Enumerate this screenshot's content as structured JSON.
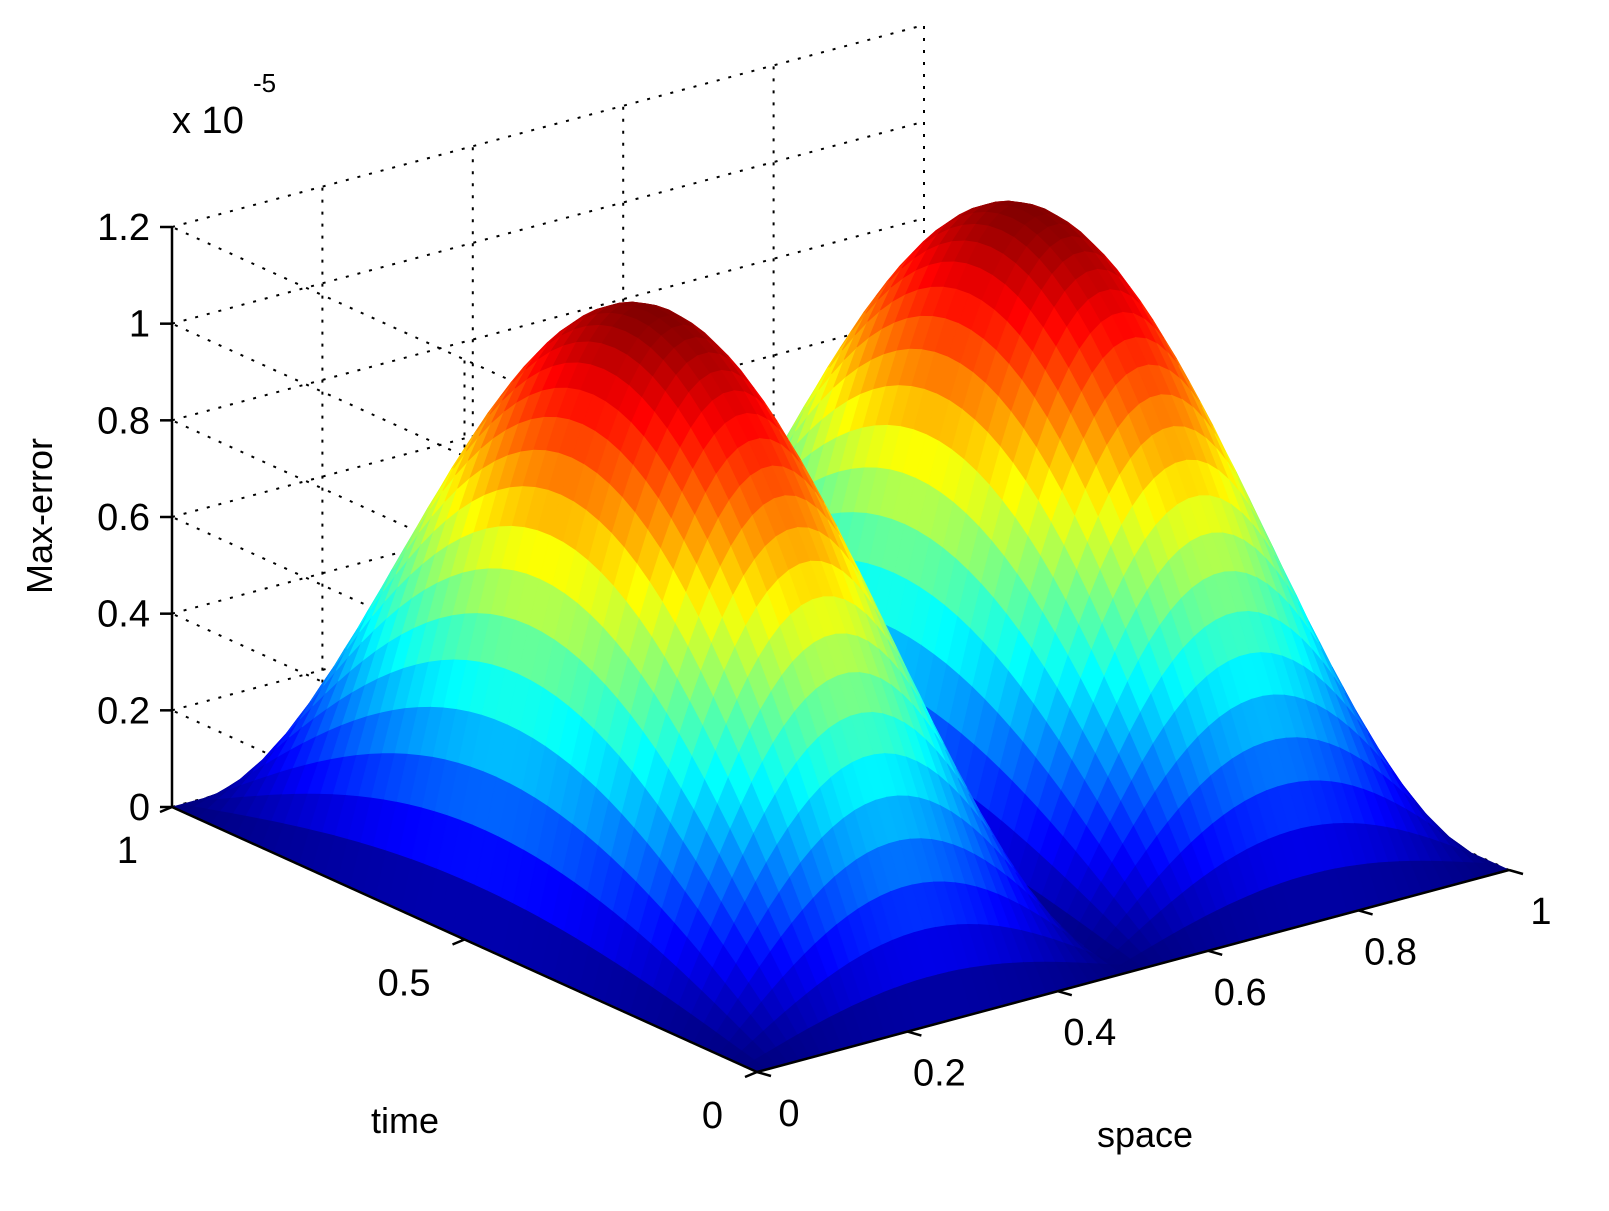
{
  "chart_data": {
    "type": "surface",
    "title": "",
    "xlabel": "space",
    "ylabel": "time",
    "zlabel": "Max-error",
    "z_multiplier_label": {
      "base": "x 10",
      "exponent": "-5"
    },
    "x_ticks": [
      "0",
      "0.2",
      "0.4",
      "0.6",
      "0.8",
      "1"
    ],
    "x_tick_values": [
      0,
      0.2,
      0.4,
      0.6,
      0.8,
      1
    ],
    "y_ticks": [
      "0",
      "0.5",
      "1"
    ],
    "y_tick_values": [
      0,
      0.5,
      1
    ],
    "z_ticks": [
      "0",
      "0.2",
      "0.4",
      "0.6",
      "0.8",
      "1",
      "1.2"
    ],
    "z_tick_values": [
      0,
      0.2,
      0.4,
      0.6,
      0.8,
      1.0,
      1.2
    ],
    "xlim": [
      0,
      1
    ],
    "ylim": [
      0,
      1
    ],
    "zlim": [
      0,
      1.2
    ],
    "grid": true,
    "colormap": "jet",
    "approx_surface": "z = 1.2 * sin(pi*t) * |sin(2*pi*x)| (units of 1e-5; peaks: x≈0.25,t=0.5 z≈1.2 and x≈0.75,t=0.5 z≈1.2; zero along x=0, 0.5, 1 and t=0, 1)",
    "peak_value": 1.2
  }
}
